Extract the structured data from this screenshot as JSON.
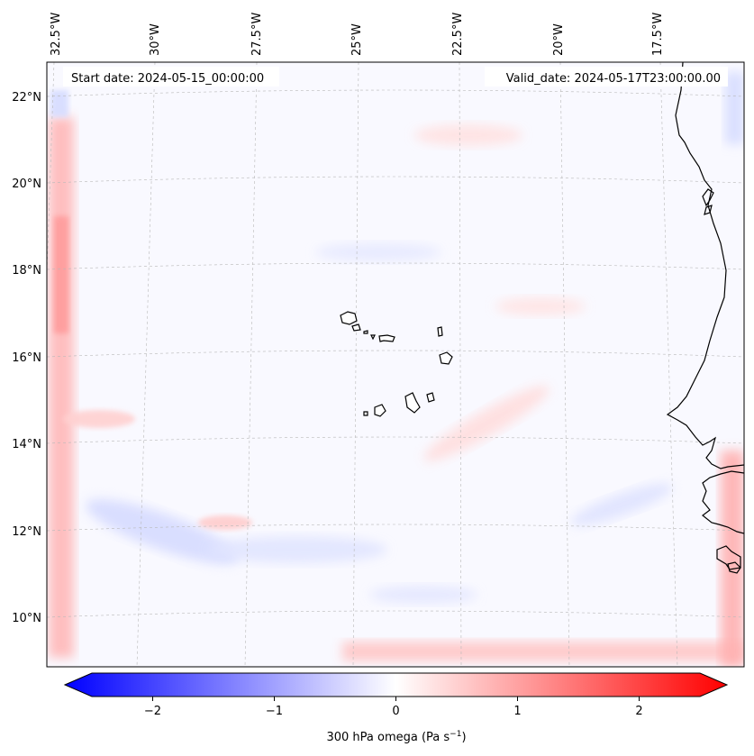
{
  "map": {
    "start_date": "Start date: 2024-05-15_00:00:00",
    "valid_date": "Valid_date: 2024-05-17T23:00:00.00",
    "lon_labels": [
      "32.5°W",
      "30°W",
      "27.5°W",
      "25°W",
      "22.5°W",
      "20°W",
      "17.5°W"
    ],
    "lat_labels": [
      "22°N",
      "20°N",
      "18°N",
      "16°N",
      "14°N",
      "12°N",
      "10°N"
    ],
    "region": "Cabo Verde / West African coast",
    "features": [
      "Cabo Verde islands",
      "West African coastline"
    ]
  },
  "colorbar": {
    "label": "300 hPa omega (Pa s",
    "label_sup": "−1",
    "label_close": ")",
    "ticks": [
      "−2",
      "−1",
      "0",
      "1",
      "2"
    ],
    "tick_values": [
      -2,
      -1,
      0,
      1,
      2
    ],
    "range": [
      -2.7,
      2.7
    ],
    "colors": {
      "min": "#0000ff",
      "mid": "#ffffff",
      "max": "#ff0000"
    }
  }
}
